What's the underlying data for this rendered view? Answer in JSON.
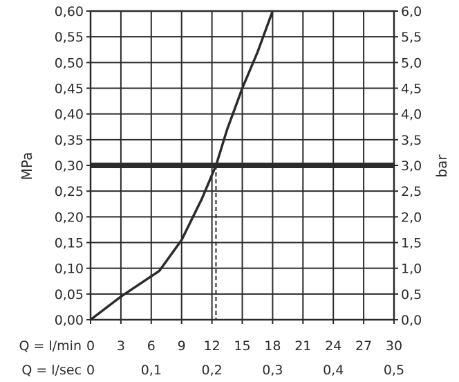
{
  "chart_data": {
    "type": "line",
    "xlabel_rows": [
      {
        "prefix": "Q = l/min",
        "ticks": [
          "0",
          "3",
          "6",
          "9",
          "12",
          "15",
          "18",
          "21",
          "24",
          "27",
          "30"
        ],
        "values": [
          0,
          3,
          6,
          9,
          12,
          15,
          18,
          21,
          24,
          27,
          30
        ]
      },
      {
        "prefix": "Q = l/sec",
        "ticks": [
          "0",
          "0,1",
          "0,2",
          "0,3",
          "0,4",
          "0,5"
        ],
        "values": [
          0,
          6,
          12,
          18,
          24,
          30
        ]
      }
    ],
    "xlim": [
      0,
      30
    ],
    "ylabel_left": "MPa",
    "ylabel_right": "bar",
    "ylim": [
      0,
      0.6
    ],
    "left_ticks": [
      "0,00",
      "0,05",
      "0,10",
      "0,15",
      "0,20",
      "0,25",
      "0,30",
      "0,35",
      "0,40",
      "0,45",
      "0,50",
      "0,55",
      "0,60"
    ],
    "right_ticks": [
      "0,0",
      "0,5",
      "1,0",
      "1,5",
      "2,0",
      "2,5",
      "3,0",
      "3,5",
      "4,0",
      "4,5",
      "5,0",
      "5,5",
      "6,0"
    ],
    "grid": true,
    "series": [
      {
        "x": [
          0,
          3,
          6.8,
          9,
          11,
          12.4,
          13.5,
          15,
          16.5,
          18
        ],
        "y": [
          0,
          0.045,
          0.095,
          0.155,
          0.235,
          0.3,
          0.37,
          0.45,
          0.52,
          0.6
        ],
        "color": "#2b2b2b"
      }
    ],
    "reference_line": {
      "y": 0.3,
      "color": "#2b2b2b"
    },
    "drop_line": {
      "x": 12.4,
      "from_y": 0.3,
      "to_y": 0,
      "style": "dashed"
    }
  }
}
